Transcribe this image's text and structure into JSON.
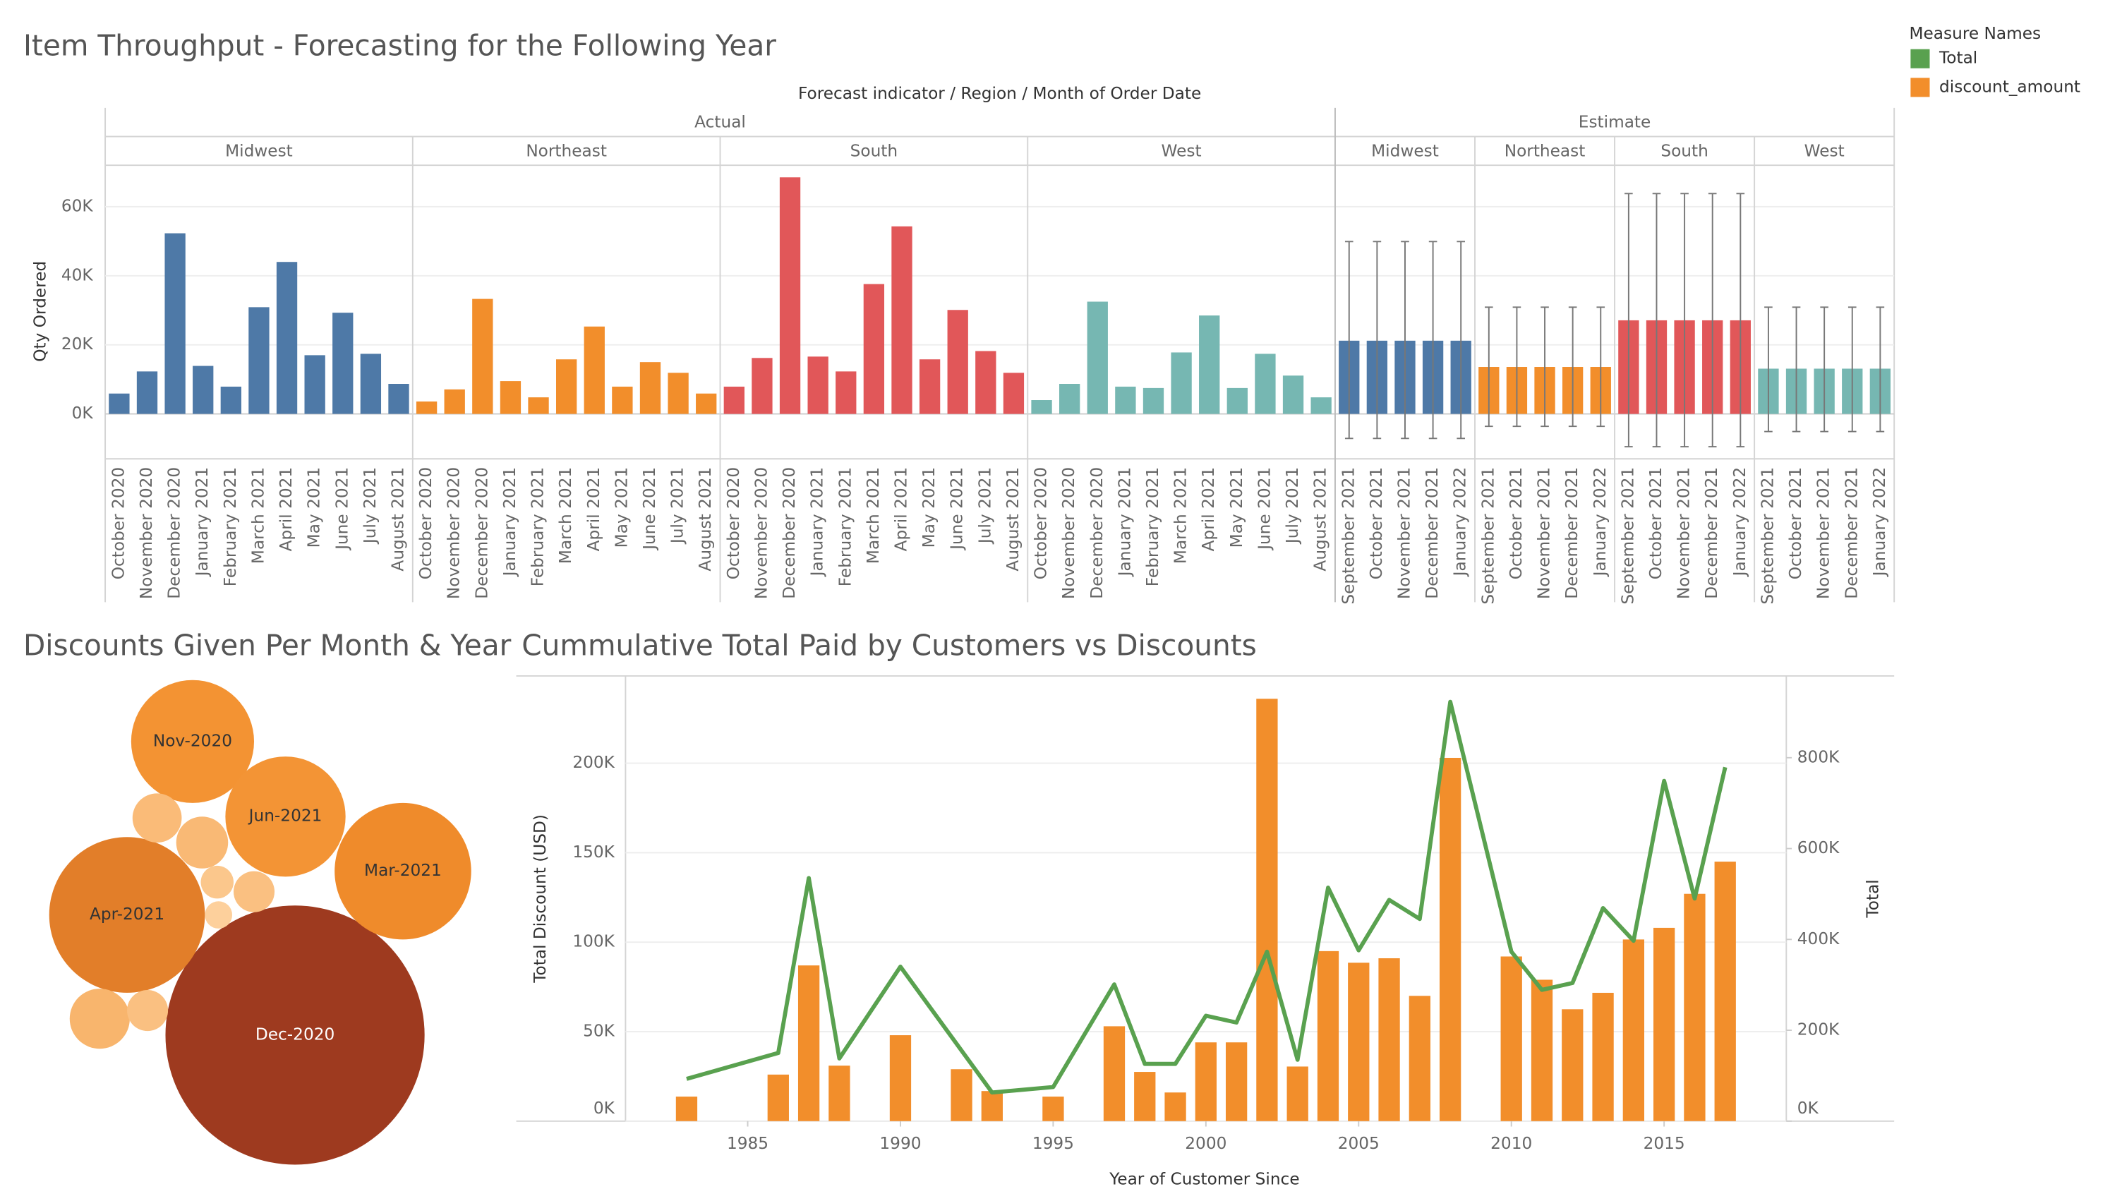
{
  "chart_data": [
    {
      "type": "bar",
      "title": "Item Throughput - Forecasting for the Following Year",
      "header": "Forecast indicator  /  Region  /  Month of Order Date",
      "y_label": "Qty Ordered",
      "ylim": [
        -13000,
        72000
      ],
      "yticks": [
        {
          "value": 0,
          "label": "0K"
        },
        {
          "value": 20000,
          "label": "20K"
        },
        {
          "value": 40000,
          "label": "40K"
        },
        {
          "value": 60000,
          "label": "60K"
        }
      ],
      "grid": true,
      "groups": [
        {
          "name": "Actual",
          "regions": [
            {
              "name": "Midwest",
              "color": "#4e79a7",
              "categories": [
                "October 2020",
                "November 2020",
                "December 2020",
                "January 2021",
                "February 2021",
                "March 2021",
                "April 2021",
                "May 2021",
                "June 2021",
                "July 2021",
                "August 2021"
              ],
              "values": [
                5900,
                12300,
                52300,
                13900,
                7900,
                30900,
                44000,
                17000,
                29300,
                17400,
                8700
              ]
            },
            {
              "name": "Northeast",
              "color": "#f28e2b",
              "categories": [
                "October 2020",
                "November 2020",
                "December 2020",
                "January 2021",
                "February 2021",
                "March 2021",
                "April 2021",
                "May 2021",
                "June 2021",
                "July 2021",
                "August 2021"
              ],
              "values": [
                3600,
                7100,
                33300,
                9500,
                4800,
                15800,
                25300,
                7900,
                15000,
                11900,
                5900
              ]
            },
            {
              "name": "South",
              "color": "#e15759",
              "categories": [
                "October 2020",
                "November 2020",
                "December 2020",
                "January 2021",
                "February 2021",
                "March 2021",
                "April 2021",
                "May 2021",
                "June 2021",
                "July 2021",
                "August 2021"
              ],
              "values": [
                7900,
                16200,
                68500,
                16600,
                12300,
                37600,
                54300,
                15800,
                30100,
                18200,
                11900
              ]
            },
            {
              "name": "West",
              "color": "#76b7b2",
              "categories": [
                "October 2020",
                "November 2020",
                "December 2020",
                "January 2021",
                "February 2021",
                "March 2021",
                "April 2021",
                "May 2021",
                "June 2021",
                "July 2021",
                "August 2021"
              ],
              "values": [
                4000,
                8700,
                32500,
                7900,
                7500,
                17800,
                28500,
                7500,
                17400,
                11100,
                4800
              ]
            }
          ]
        },
        {
          "name": "Estimate",
          "regions": [
            {
              "name": "Midwest",
              "color": "#4e79a7",
              "categories": [
                "September 2021",
                "October 2021",
                "November 2021",
                "December 2021",
                "January 2022"
              ],
              "values": [
                21200,
                21200,
                21200,
                21200,
                21200
              ],
              "lower": [
                -7100,
                -7100,
                -7100,
                -7100,
                -7100
              ],
              "upper": [
                49900,
                49900,
                49900,
                49900,
                49900
              ]
            },
            {
              "name": "Northeast",
              "color": "#f28e2b",
              "categories": [
                "September 2021",
                "October 2021",
                "November 2021",
                "December 2021",
                "January 2022"
              ],
              "values": [
                13600,
                13600,
                13600,
                13600,
                13600
              ],
              "lower": [
                -3600,
                -3600,
                -3600,
                -3600,
                -3600
              ],
              "upper": [
                30900,
                30900,
                30900,
                30900,
                30900
              ]
            },
            {
              "name": "South",
              "color": "#e15759",
              "categories": [
                "September 2021",
                "October 2021",
                "November 2021",
                "December 2021",
                "January 2022"
              ],
              "values": [
                27100,
                27100,
                27100,
                27100,
                27100
              ],
              "lower": [
                -9500,
                -9500,
                -9500,
                -9500,
                -9500
              ],
              "upper": [
                63800,
                63800,
                63800,
                63800,
                63800
              ]
            },
            {
              "name": "West",
              "color": "#76b7b2",
              "categories": [
                "September 2021",
                "October 2021",
                "November 2021",
                "December 2021",
                "January 2022"
              ],
              "values": [
                13100,
                13100,
                13100,
                13100,
                13100
              ],
              "lower": [
                -5100,
                -5100,
                -5100,
                -5100,
                -5100
              ],
              "upper": [
                30900,
                30900,
                30900,
                30900,
                30900
              ]
            }
          ]
        }
      ]
    },
    {
      "type": "bubble",
      "title": "Discounts Given Per Month & Year",
      "labels": [
        "Dec-2020",
        "Apr-2021",
        "Mar-2021",
        "Nov-2020",
        "Jun-2021",
        null,
        null,
        null,
        null,
        null,
        null,
        null
      ],
      "values": [
        9000,
        3250,
        2500,
        2025,
        1936,
        324,
        361,
        144,
        225,
        100,
        484,
        225
      ],
      "color_range": [
        "#fdd09c",
        "#f28e2b",
        "#9e3a1f"
      ]
    },
    {
      "type": "combo",
      "title": "Cummulative Total Paid by Customers vs Discounts",
      "x_label": "Year of Customer Since",
      "y_label": "Total Discount (USD)",
      "y2_label": "Total",
      "xlim": [
        1981,
        2019
      ],
      "xticks": [
        1985,
        1990,
        1995,
        2000,
        2005,
        2010,
        2015
      ],
      "ylim": [
        0,
        248000
      ],
      "yticks": [
        {
          "value": 0,
          "label": "0K"
        },
        {
          "value": 50000,
          "label": "50K"
        },
        {
          "value": 100000,
          "label": "100K"
        },
        {
          "value": 150000,
          "label": "150K"
        },
        {
          "value": 200000,
          "label": "200K"
        }
      ],
      "y2lim": [
        0,
        977000
      ],
      "y2ticks": [
        {
          "value": 0,
          "label": "0K"
        },
        {
          "value": 200000,
          "label": "200K"
        },
        {
          "value": 400000,
          "label": "400K"
        },
        {
          "value": 600000,
          "label": "600K"
        },
        {
          "value": 800000,
          "label": "800K"
        }
      ],
      "grid": true,
      "legend_title": "Measure Names",
      "legend": "top-right",
      "series": [
        {
          "name": "Total",
          "color": "#59a14f",
          "type": "line",
          "axis": "y2",
          "x": [
            1983,
            1986,
            1987,
            1988,
            1990,
            1993,
            1995,
            1997,
            1998,
            1999,
            2000,
            2001,
            2002,
            2003,
            2004,
            2005,
            2006,
            2007,
            2008,
            2010,
            2011,
            2012,
            2013,
            2014,
            2015,
            2016,
            2017
          ],
          "values": [
            93000,
            150000,
            535000,
            138000,
            340000,
            63000,
            75000,
            301000,
            126000,
            126000,
            232000,
            217000,
            373000,
            135000,
            514000,
            376000,
            487000,
            445000,
            923000,
            373000,
            289000,
            304000,
            469000,
            397000,
            749000,
            490000,
            779000
          ]
        },
        {
          "name": "discount_amount",
          "color": "#f28e2b",
          "type": "bar",
          "x": [
            1983,
            1986,
            1987,
            1988,
            1990,
            1992,
            1993,
            1995,
            1997,
            1998,
            1999,
            2000,
            2001,
            2002,
            2003,
            2004,
            2005,
            2006,
            2007,
            2008,
            2010,
            2011,
            2012,
            2013,
            2014,
            2015,
            2016,
            2017
          ],
          "values": [
            13700,
            26000,
            87000,
            31000,
            48000,
            29000,
            16800,
            13700,
            53000,
            27500,
            16000,
            44000,
            44000,
            236000,
            30500,
            95000,
            88500,
            91000,
            70000,
            203000,
            92000,
            79000,
            62500,
            71700,
            101500,
            108000,
            127000,
            145000
          ]
        }
      ]
    }
  ]
}
